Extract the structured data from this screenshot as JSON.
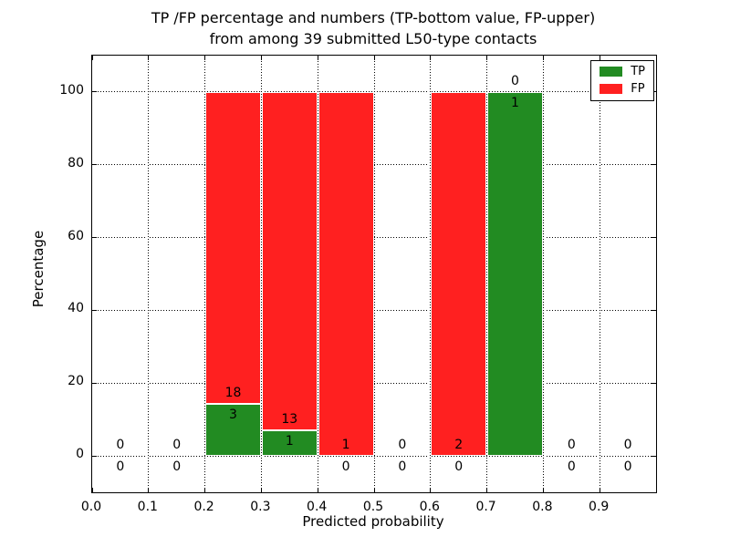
{
  "chart_data": {
    "type": "bar",
    "stacked": true,
    "title_lines": [
      "TP /FP percentage and numbers (TP-bottom value, FP-upper)",
      "from among 39 submitted L50-type contacts"
    ],
    "total_contacts": 39,
    "xlabel": "Predicted probability",
    "ylabel": "Percentage",
    "xlim": [
      0.0,
      1.0
    ],
    "ylim": [
      -10,
      110
    ],
    "grid": "dotted",
    "xtick_values": [
      0.0,
      0.1,
      0.2,
      0.3,
      0.4,
      0.5,
      0.6,
      0.7,
      0.8,
      0.9
    ],
    "xtick_labels": [
      "0.0",
      "0.1",
      "0.2",
      "0.3",
      "0.4",
      "0.5",
      "0.6",
      "0.7",
      "0.8",
      "0.9"
    ],
    "ytick_values": [
      0,
      20,
      40,
      60,
      80,
      100
    ],
    "ytick_labels": [
      "0",
      "20",
      "40",
      "60",
      "80",
      "100"
    ],
    "legend": {
      "position": "upper right",
      "entries": [
        {
          "series": "tp",
          "label": "TP",
          "color": "#228b22"
        },
        {
          "series": "fp",
          "label": "FP",
          "color": "#ff2020"
        }
      ]
    },
    "bar_edge_color": "#ffffff",
    "bins": [
      {
        "x0": 0.0,
        "x1": 0.1,
        "tp": 0,
        "fp": 0,
        "tp_percent": 0,
        "fp_percent": 0
      },
      {
        "x0": 0.1,
        "x1": 0.2,
        "tp": 0,
        "fp": 0,
        "tp_percent": 0,
        "fp_percent": 0
      },
      {
        "x0": 0.2,
        "x1": 0.3,
        "tp": 3,
        "fp": 18,
        "tp_percent": 14.3,
        "fp_percent": 85.7
      },
      {
        "x0": 0.3,
        "x1": 0.4,
        "tp": 1,
        "fp": 13,
        "tp_percent": 7.1,
        "fp_percent": 92.9
      },
      {
        "x0": 0.4,
        "x1": 0.5,
        "tp": 0,
        "fp": 1,
        "tp_percent": 0,
        "fp_percent": 100
      },
      {
        "x0": 0.5,
        "x1": 0.6,
        "tp": 0,
        "fp": 0,
        "tp_percent": 0,
        "fp_percent": 0
      },
      {
        "x0": 0.6,
        "x1": 0.7,
        "tp": 0,
        "fp": 2,
        "tp_percent": 0,
        "fp_percent": 100
      },
      {
        "x0": 0.7,
        "x1": 0.8,
        "tp": 1,
        "fp": 0,
        "tp_percent": 100,
        "fp_percent": 0
      },
      {
        "x0": 0.8,
        "x1": 0.9,
        "tp": 0,
        "fp": 0,
        "tp_percent": 0,
        "fp_percent": 0
      },
      {
        "x0": 0.9,
        "x1": 1.0,
        "tp": 0,
        "fp": 0,
        "tp_percent": 0,
        "fp_percent": 0
      }
    ]
  }
}
